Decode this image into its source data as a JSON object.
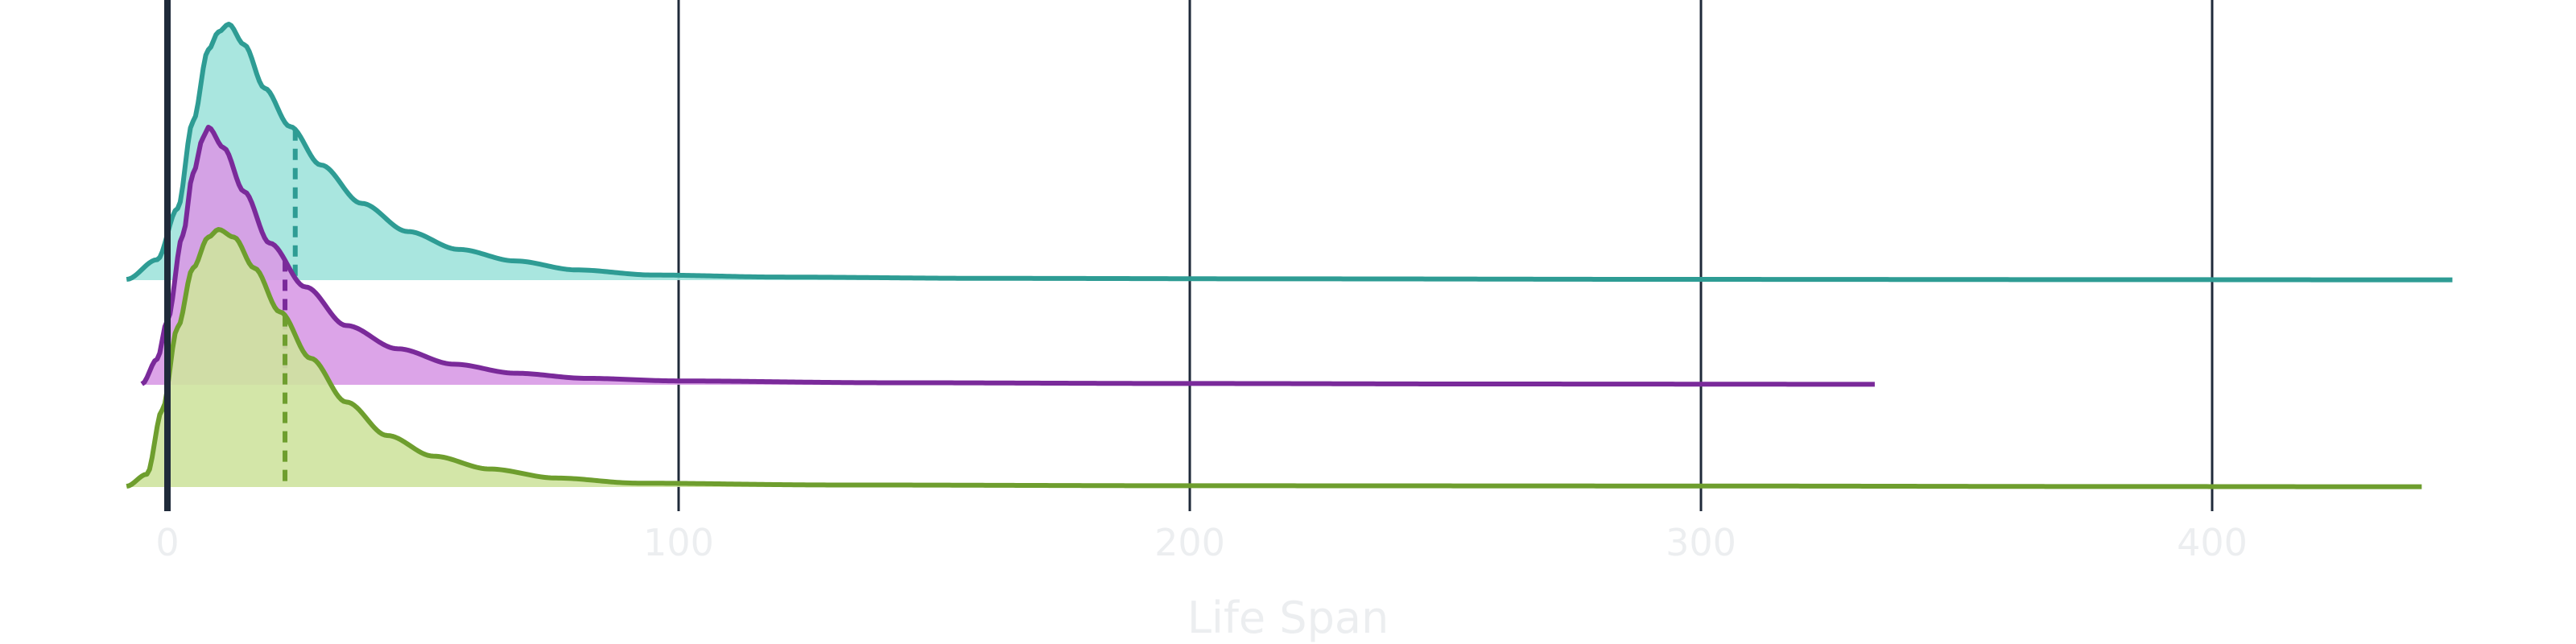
{
  "chart_data": {
    "type": "ridgeline",
    "title": "",
    "xlabel": "Life Span",
    "ylabel": "",
    "xlim": [
      -8,
      455
    ],
    "x_ticks": [
      0,
      100,
      200,
      300,
      400
    ],
    "x_tick_labels": [
      "0",
      "100",
      "200",
      "300",
      "400"
    ],
    "grid": "vertical",
    "legend": "none",
    "series": [
      {
        "key": "top",
        "line_color": "#2e9c94",
        "fill_color": "#a0e3dc",
        "x_range": [
          -8,
          447
        ],
        "dashed_marker_x": 25,
        "density": [
          [
            -8,
            0.003
          ],
          [
            -2,
            0.08
          ],
          [
            2,
            0.28
          ],
          [
            5,
            0.62
          ],
          [
            8,
            0.9
          ],
          [
            10,
            0.97
          ],
          [
            12,
            1.0
          ],
          [
            15,
            0.92
          ],
          [
            19,
            0.75
          ],
          [
            24,
            0.6
          ],
          [
            30,
            0.45
          ],
          [
            38,
            0.3
          ],
          [
            47,
            0.19
          ],
          [
            57,
            0.12
          ],
          [
            68,
            0.075
          ],
          [
            80,
            0.04
          ],
          [
            95,
            0.02
          ],
          [
            120,
            0.012
          ],
          [
            160,
            0.007
          ],
          [
            220,
            0.005
          ],
          [
            300,
            0.003
          ],
          [
            380,
            0.002
          ],
          [
            447,
            0.001
          ]
        ]
      },
      {
        "key": "middle",
        "line_color": "#7a2a9a",
        "fill_color": "#d89ae6",
        "x_range": [
          -5,
          334
        ],
        "dashed_marker_x": 23,
        "density": [
          [
            -5,
            0.003
          ],
          [
            -2,
            0.1
          ],
          [
            0,
            0.25
          ],
          [
            3,
            0.58
          ],
          [
            5,
            0.82
          ],
          [
            7,
            0.96
          ],
          [
            8,
            1.0
          ],
          [
            11,
            0.92
          ],
          [
            15,
            0.75
          ],
          [
            20,
            0.55
          ],
          [
            27,
            0.38
          ],
          [
            35,
            0.23
          ],
          [
            45,
            0.14
          ],
          [
            56,
            0.08
          ],
          [
            68,
            0.045
          ],
          [
            82,
            0.025
          ],
          [
            100,
            0.015
          ],
          [
            140,
            0.008
          ],
          [
            200,
            0.005
          ],
          [
            260,
            0.003
          ],
          [
            334,
            0.002
          ]
        ]
      },
      {
        "key": "bottom",
        "line_color": "#6e9e2e",
        "fill_color": "#cee39e",
        "x_range": [
          -8,
          441
        ],
        "dashed_marker_x": 23,
        "density": [
          [
            -8,
            0.003
          ],
          [
            -4,
            0.05
          ],
          [
            -1,
            0.3
          ],
          [
            2,
            0.62
          ],
          [
            5,
            0.85
          ],
          [
            8,
            0.97
          ],
          [
            10,
            1.0
          ],
          [
            13,
            0.97
          ],
          [
            17,
            0.85
          ],
          [
            22,
            0.68
          ],
          [
            28,
            0.5
          ],
          [
            35,
            0.33
          ],
          [
            43,
            0.2
          ],
          [
            52,
            0.12
          ],
          [
            63,
            0.07
          ],
          [
            76,
            0.035
          ],
          [
            92,
            0.015
          ],
          [
            130,
            0.008
          ],
          [
            200,
            0.005
          ],
          [
            300,
            0.004
          ],
          [
            380,
            0.002
          ],
          [
            441,
            0.001
          ]
        ]
      }
    ]
  }
}
